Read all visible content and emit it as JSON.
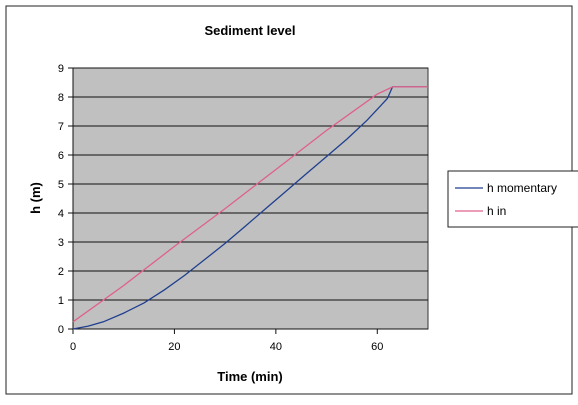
{
  "chart_data": {
    "type": "line",
    "title": "Sediment level",
    "xlabel": "Time (min)",
    "ylabel": "h (m)",
    "xlim": [
      0,
      70
    ],
    "ylim": [
      0,
      9
    ],
    "xticks": [
      0,
      20,
      40,
      60
    ],
    "yticks": [
      0,
      1,
      2,
      3,
      4,
      5,
      6,
      7,
      8,
      9
    ],
    "grid": "horizontal",
    "legend_position": "right",
    "plot_background": "#c0c0c0",
    "series": [
      {
        "name": "h momentary",
        "color": "#1f3f8f",
        "x": [
          0,
          3,
          6,
          10,
          14,
          18,
          22,
          26,
          30,
          34,
          38,
          42,
          46,
          50,
          54,
          58,
          62,
          63,
          66,
          70
        ],
        "y": [
          0,
          0.1,
          0.25,
          0.55,
          0.9,
          1.35,
          1.85,
          2.4,
          2.95,
          3.55,
          4.15,
          4.75,
          5.35,
          5.95,
          6.55,
          7.2,
          7.95,
          8.35,
          8.35,
          8.35
        ]
      },
      {
        "name": "h in",
        "color": "#e0608a",
        "x": [
          0,
          10,
          20,
          30,
          40,
          50,
          60,
          63,
          66,
          70
        ],
        "y": [
          0.25,
          1.5,
          2.85,
          4.15,
          5.5,
          6.85,
          8.1,
          8.35,
          8.35,
          8.35
        ]
      }
    ]
  }
}
